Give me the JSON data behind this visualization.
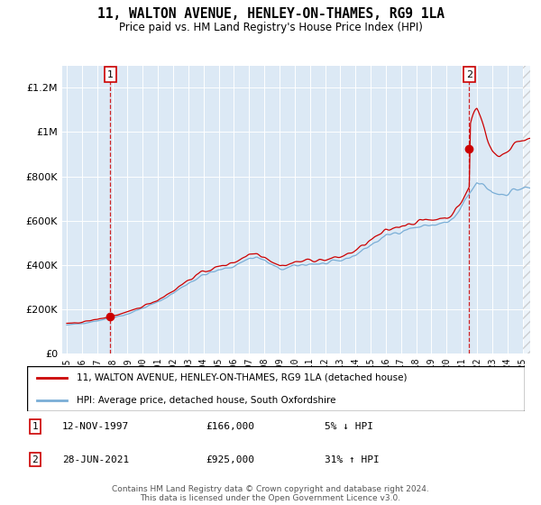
{
  "title": "11, WALTON AVENUE, HENLEY-ON-THAMES, RG9 1LA",
  "subtitle": "Price paid vs. HM Land Registry's House Price Index (HPI)",
  "legend_line1": "11, WALTON AVENUE, HENLEY-ON-THAMES, RG9 1LA (detached house)",
  "legend_line2": "HPI: Average price, detached house, South Oxfordshire",
  "annotation1_date": "12-NOV-1997",
  "annotation1_price": "£166,000",
  "annotation1_hpi": "5% ↓ HPI",
  "annotation2_date": "28-JUN-2021",
  "annotation2_price": "£925,000",
  "annotation2_hpi": "31% ↑ HPI",
  "footer": "Contains HM Land Registry data © Crown copyright and database right 2024.\nThis data is licensed under the Open Government Licence v3.0.",
  "bg_color": "#dce9f5",
  "red_color": "#cc0000",
  "blue_color": "#7aaed6",
  "transaction1_x": 1997.87,
  "transaction1_y": 166000,
  "transaction2_x": 2021.49,
  "transaction2_y": 925000,
  "ylim": [
    0,
    1300000
  ],
  "xlim": [
    1994.7,
    2025.5
  ]
}
